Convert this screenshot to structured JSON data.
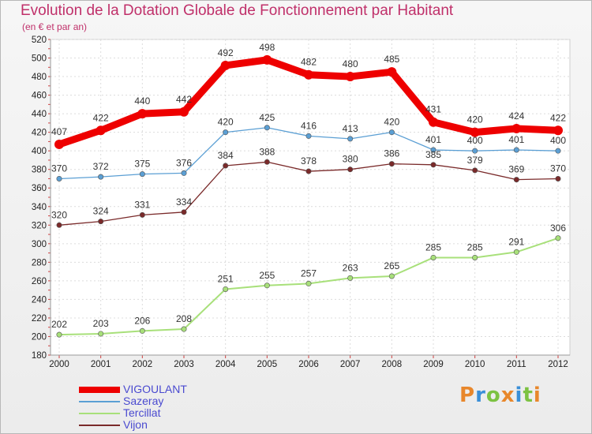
{
  "header": {
    "title": "Evolution de la Dotation Globale de Fonctionnement par Habitant",
    "subtitle": "(en € et par an)"
  },
  "brand": {
    "logo_text": "Proxiti",
    "colors": [
      "#e8872b",
      "#3a8fd8",
      "#7cc242",
      "#e8872b",
      "#3a8fd8",
      "#7cc242",
      "#e8872b"
    ]
  },
  "chart_data": {
    "type": "line",
    "title": "Evolution de la Dotation Globale de Fonctionnement par Habitant",
    "subtitle": "(en € et par an)",
    "xlabel": "",
    "ylabel": "",
    "ylim": [
      180,
      520
    ],
    "yticks": [
      180,
      200,
      220,
      240,
      260,
      280,
      300,
      320,
      340,
      360,
      380,
      400,
      420,
      440,
      460,
      480,
      500,
      520
    ],
    "grid": true,
    "legend_position": "bottom-left",
    "x": [
      "2000",
      "2001",
      "2002",
      "2003",
      "2004",
      "2005",
      "2006",
      "2007",
      "2008",
      "2009",
      "2010",
      "2011",
      "2012"
    ],
    "series": [
      {
        "name": "VIGOULANT",
        "color": "#ee0000",
        "values": [
          407,
          422,
          440,
          442,
          492,
          498,
          482,
          480,
          485,
          431,
          420,
          424,
          422
        ]
      },
      {
        "name": "Sazeray",
        "color": "#5b9fd4",
        "values": [
          370,
          372,
          375,
          376,
          420,
          425,
          416,
          413,
          420,
          401,
          400,
          401,
          400
        ]
      },
      {
        "name": "Tercillat",
        "color": "#a8e07a",
        "values": [
          202,
          203,
          206,
          208,
          251,
          255,
          257,
          263,
          265,
          285,
          285,
          291,
          306
        ]
      },
      {
        "name": "Vijon",
        "color": "#7a2a2a",
        "values": [
          320,
          324,
          331,
          334,
          384,
          388,
          378,
          380,
          386,
          385,
          379,
          369,
          370
        ]
      }
    ]
  }
}
